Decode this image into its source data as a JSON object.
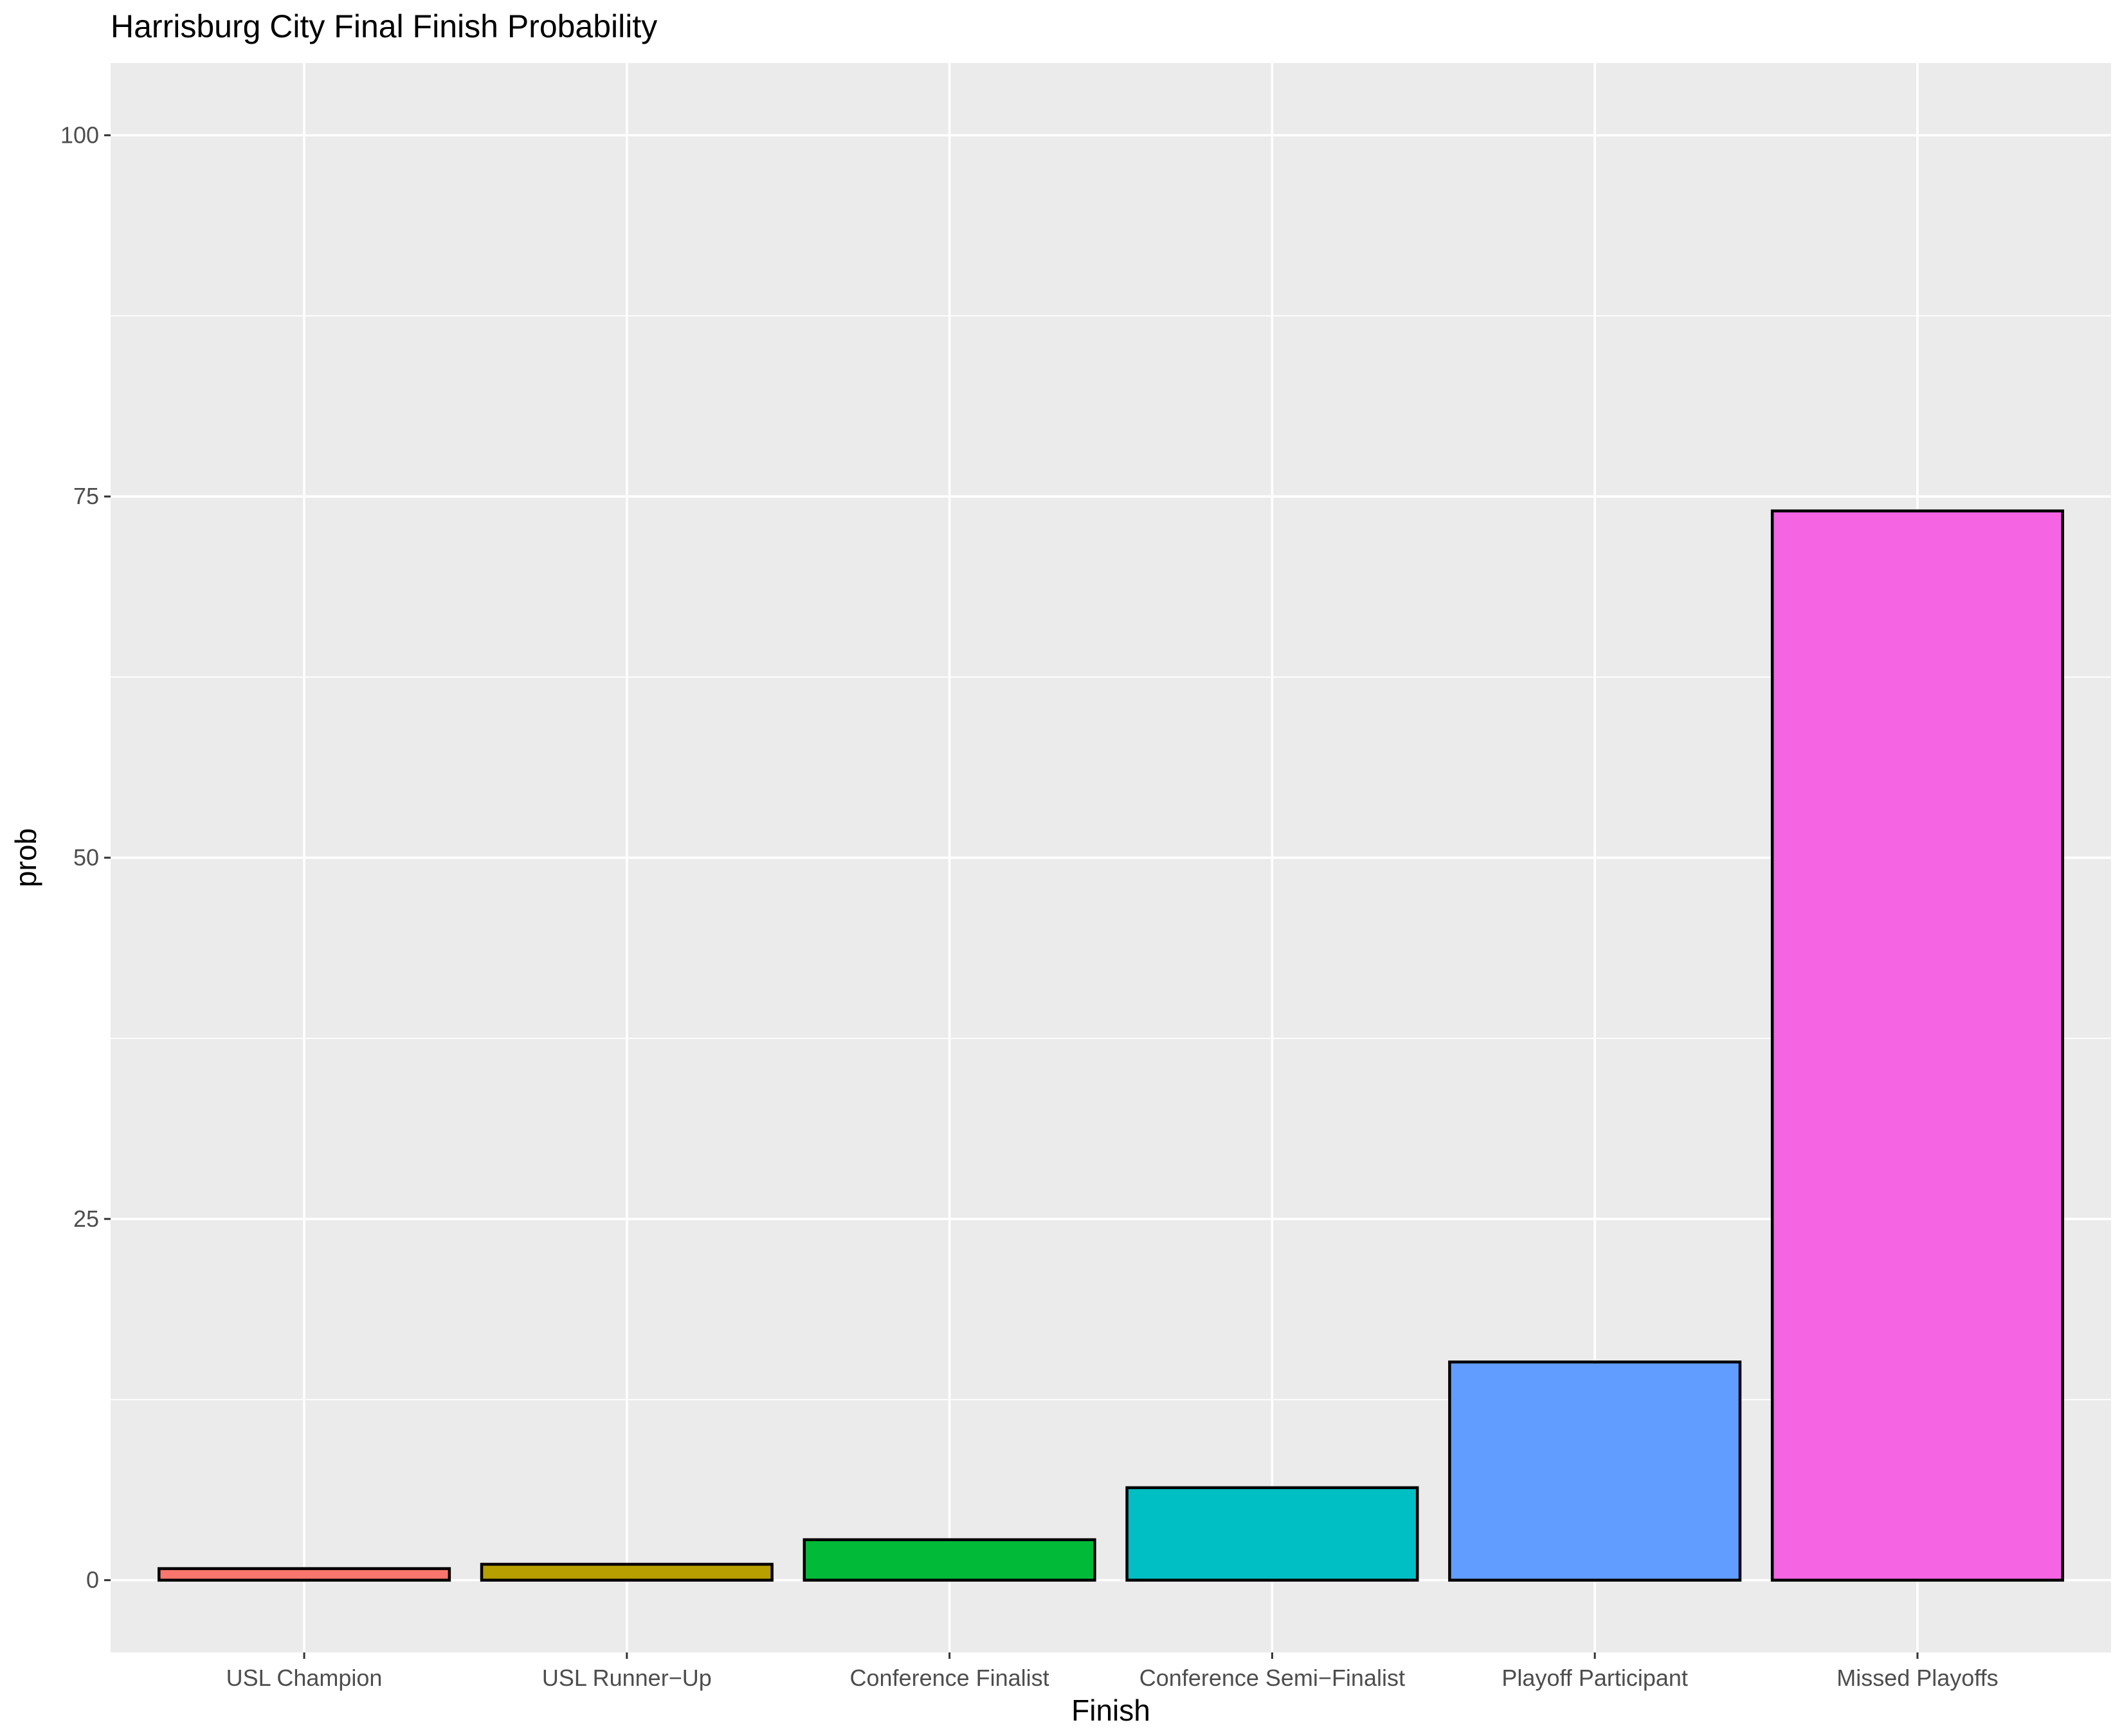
{
  "chart_data": {
    "type": "bar",
    "title": "Harrisburg City Final Finish Probability",
    "xlabel": "Finish",
    "ylabel": "prob",
    "categories": [
      "USL Champion",
      "USL Runner−Up",
      "Conference Finalist",
      "Conference Semi−Finalist",
      "Playoff Participant",
      "Missed Playoffs"
    ],
    "values": [
      0.8,
      1.1,
      2.8,
      6.4,
      15.1,
      74.0
    ],
    "colors": [
      "#F8766D",
      "#B79F00",
      "#00BA38",
      "#00BFC4",
      "#619CFF",
      "#F564E3"
    ],
    "ylim": [
      -5,
      105
    ],
    "yticks": [
      0,
      25,
      50,
      75,
      100
    ],
    "grid": true,
    "legend": "none",
    "panel_background": "#EBEBEB",
    "bar_outline": "#000000"
  }
}
